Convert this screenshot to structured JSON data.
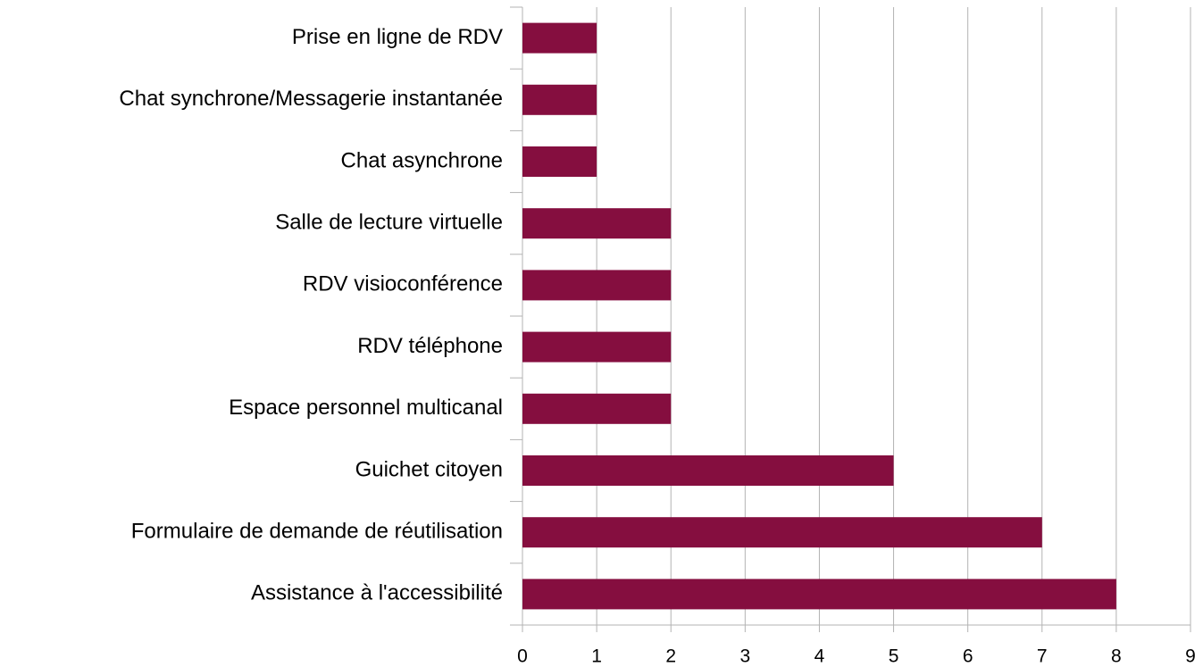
{
  "chart_data": {
    "type": "barh",
    "categories": [
      "Prise en ligne de RDV",
      "Chat synchrone/Messagerie instantanée",
      "Chat asynchrone",
      "Salle de lecture virtuelle",
      "RDV visioconférence",
      "RDV téléphone",
      "Espace personnel multicanal",
      "Guichet citoyen",
      "Formulaire de demande de réutilisation",
      "Assistance à l'accessibilité"
    ],
    "values": [
      1,
      1,
      1,
      2,
      2,
      2,
      2,
      5,
      7,
      8
    ],
    "color": "#850e3f",
    "xlim": [
      0,
      9
    ],
    "xticks": [
      0,
      1,
      2,
      3,
      4,
      5,
      6,
      7,
      8,
      9
    ],
    "grid": true
  }
}
